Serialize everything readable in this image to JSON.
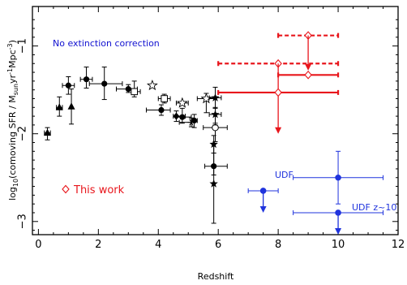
{
  "chart_data": {
    "type": "scatter",
    "xlabel": "Redshift",
    "ylabel": "log10(comoving SFR / Msun yr^-1 Mpc^-3)",
    "ylabel_parts": {
      "prefix": "log",
      "sub1": "10",
      "mid": "(comoving SFR / M",
      "sub2": "sun",
      "mid2": "yr",
      "sup1": "-1",
      "mid3": "Mpc",
      "sup2": "-3",
      "suffix": ")"
    },
    "xlim": [
      -0.2,
      12
    ],
    "ylim": [
      -3.15,
      -0.55
    ],
    "xticks": [
      0,
      2,
      4,
      6,
      8,
      10,
      12
    ],
    "xtick_labels": [
      "0",
      "2",
      "4",
      "6",
      "8",
      "10",
      "12"
    ],
    "yticks": [
      -1,
      -2,
      -3
    ],
    "ytick_labels": [
      "−1",
      "−2",
      "−3"
    ],
    "annotations": {
      "no_extinction": {
        "text": "No extinction correction",
        "color": "#1010d0"
      },
      "this_work": {
        "text": "This work",
        "color": "#e8161c"
      },
      "udf": {
        "text": "UDF",
        "color": "#1f33dd"
      },
      "udf_z10": {
        "text": "UDF z~10",
        "color": "#1f33dd"
      }
    },
    "colors": {
      "literature": "#000000",
      "this_work": "#e8161c",
      "udf": "#1f33dd"
    },
    "literature_points": [
      {
        "x": 0.3,
        "y": -1.99,
        "xerr": [
          0.1,
          0.1
        ],
        "yerr": [
          0.08,
          0.06
        ],
        "marker": "triangle"
      },
      {
        "x": 0.7,
        "y": -1.7,
        "xerr": [
          0.1,
          0.1
        ],
        "yerr": [
          0.1,
          0.12
        ],
        "marker": "triangle"
      },
      {
        "x": 1.1,
        "y": -1.69,
        "xerr": [
          0.0,
          0.0
        ],
        "yerr": [
          0.2,
          0.2
        ],
        "marker": "triangle"
      },
      {
        "x": 1.0,
        "y": -1.45,
        "xerr": [
          0.2,
          0.2
        ],
        "yerr": [
          0.1,
          0.1
        ],
        "marker": "circle"
      },
      {
        "x": 1.6,
        "y": -1.38,
        "xerr": [
          0.2,
          0.2
        ],
        "yerr": [
          0.1,
          0.14
        ],
        "marker": "circle"
      },
      {
        "x": 2.2,
        "y": -1.43,
        "xerr": [
          0.5,
          0.6
        ],
        "yerr": [
          0.18,
          0.19
        ],
        "marker": "circle"
      },
      {
        "x": 3.0,
        "y": -1.49,
        "xerr": [
          0.4,
          0.3
        ],
        "yerr": [
          0.04,
          0.05
        ],
        "marker": "circle"
      },
      {
        "x": 3.2,
        "y": -1.52,
        "xerr": [
          0.1,
          0.2
        ],
        "yerr": [
          0.06,
          0.12
        ],
        "marker": "square-open"
      },
      {
        "x": 3.8,
        "y": -1.45,
        "xerr": [
          0.0,
          0.0
        ],
        "yerr": [
          0.0,
          0.0
        ],
        "marker": "star-open"
      },
      {
        "x": 4.2,
        "y": -1.6,
        "xerr": [
          0.2,
          0.2
        ],
        "yerr": [
          0.05,
          0.05
        ],
        "marker": "square-open"
      },
      {
        "x": 4.1,
        "y": -1.73,
        "xerr": [
          0.5,
          0.3
        ],
        "yerr": [
          0.06,
          0.06
        ],
        "marker": "circle"
      },
      {
        "x": 4.6,
        "y": -1.8,
        "xerr": [
          0.1,
          0.3
        ],
        "yerr": [
          0.06,
          0.06
        ],
        "marker": "diamond"
      },
      {
        "x": 4.8,
        "y": -1.65,
        "xerr": [
          0.2,
          0.2
        ],
        "yerr": [
          0.0,
          0.0
        ],
        "marker": "star-open"
      },
      {
        "x": 4.8,
        "y": -1.81,
        "xerr": [
          0.2,
          0.3
        ],
        "yerr": [
          0.07,
          0.1
        ],
        "marker": "circle"
      },
      {
        "x": 5.1,
        "y": -1.87,
        "xerr": [
          0.4,
          0.0
        ],
        "yerr": [
          0.05,
          0.05
        ],
        "marker": "asterisk"
      },
      {
        "x": 5.2,
        "y": -1.85,
        "xerr": [
          0.1,
          0.1
        ],
        "yerr": [
          0.08,
          0.07
        ],
        "marker": "circle"
      },
      {
        "x": 5.9,
        "y": -1.93,
        "xerr": [
          0.4,
          0.4
        ],
        "yerr": [
          0.16,
          0.05
        ],
        "marker": "circle-open"
      },
      {
        "x": 5.6,
        "y": -1.6,
        "xerr": [
          0.3,
          0.3
        ],
        "yerr": [
          0.16,
          0.06
        ],
        "marker": "star-open"
      },
      {
        "x": 5.9,
        "y": -1.78,
        "xerr": [
          0.2,
          0.2
        ],
        "yerr": [
          0.12,
          0.08
        ],
        "marker": "star"
      },
      {
        "x": 5.9,
        "y": -1.59,
        "xerr": [
          0.2,
          0.2
        ],
        "yerr": [
          0.12,
          0.12
        ],
        "marker": "star"
      },
      {
        "x": 5.85,
        "y": -2.12,
        "xerr": [
          0.0,
          0.0
        ],
        "yerr": [
          0.1,
          0.1
        ],
        "marker": "star"
      },
      {
        "x": 5.85,
        "y": -2.37,
        "xerr": [
          0.3,
          0.45
        ],
        "yerr": [
          0.1,
          0.15
        ],
        "marker": "circle"
      },
      {
        "x": 5.85,
        "y": -2.57,
        "xerr": [
          0.0,
          0.0
        ],
        "yerr": [
          0.45,
          0.45
        ],
        "marker": "star"
      }
    ],
    "this_work": [
      {
        "x": 9.0,
        "y": -0.88,
        "xerr": [
          1.0,
          1.0
        ],
        "yerr": [
          0.0,
          0.0
        ],
        "marker": "diamond-open",
        "dashed": true,
        "upper_limit": false
      },
      {
        "x": 8.0,
        "y": -1.2,
        "xerr": [
          2.0,
          2.0
        ],
        "yerr": [
          0.0,
          0.0
        ],
        "marker": "diamond-open",
        "dashed": true,
        "upper_limit": false
      },
      {
        "x": 9.0,
        "y": -0.88,
        "xerr": [
          0.0,
          0.0
        ],
        "yerr": [
          0.0,
          0.4
        ],
        "marker": "none",
        "dashed": false,
        "upper_limit": true
      },
      {
        "x": 9.0,
        "y": -1.33,
        "xerr": [
          1.0,
          1.0
        ],
        "yerr": [
          0.0,
          0.0
        ],
        "marker": "diamond-open",
        "dashed": false,
        "upper_limit": false
      },
      {
        "x": 8.0,
        "y": -1.2,
        "xerr": [
          0.0,
          0.0
        ],
        "yerr": [
          0.0,
          0.8
        ],
        "marker": "none",
        "dashed": false,
        "upper_limit": true
      },
      {
        "x": 8.0,
        "y": -1.53,
        "xerr": [
          2.0,
          2.0
        ],
        "yerr": [
          0.0,
          0.0
        ],
        "marker": "diamond-open",
        "dashed": false,
        "upper_limit": false
      }
    ],
    "udf": [
      {
        "x": 7.5,
        "y": -2.65,
        "xerr": [
          0.5,
          0.5
        ],
        "yerr": [
          0.0,
          0.0
        ],
        "upper_limit": true
      },
      {
        "x": 10.0,
        "y": -2.5,
        "xerr": [
          1.5,
          1.5
        ],
        "yerr": [
          0.3,
          0.3
        ],
        "upper_limit": false
      },
      {
        "x": 10.0,
        "y": -2.9,
        "xerr": [
          1.5,
          1.5
        ],
        "yerr": [
          0.0,
          0.0
        ],
        "upper_limit": true
      }
    ]
  }
}
